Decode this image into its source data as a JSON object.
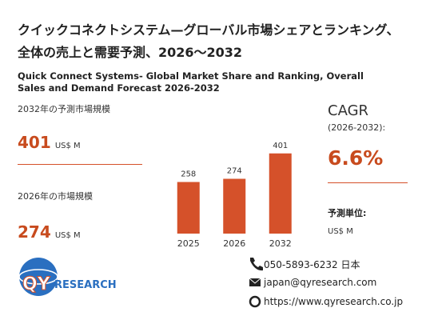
{
  "header": {
    "title_ja": "クイックコネクトシステム—グローバル市場シェアとランキング、全体の売上と需要予測、2026～2032",
    "title_en": "Quick Connect Systems- Global Market Share and Ranking, Overall Sales and Demand Forecast 2026-2032"
  },
  "stats": [
    {
      "label": "2032年の予測市場規模",
      "value": "401",
      "unit": "US$ M"
    },
    {
      "label": "2026年の市場規模",
      "value": "274",
      "unit": "US$ M"
    }
  ],
  "cagr": {
    "label": "CAGR",
    "period": "(2026-2032):",
    "value": "6.6%",
    "unit_label": "予測単位:",
    "unit": "US$ M"
  },
  "contact": {
    "phone": "050-5893-6232 日本",
    "email": "japan@qyresearch.com",
    "url": "https://www.qyresearch.co.jp"
  },
  "logo": {
    "prefix": "QY",
    "suffix": "RESEARCH"
  },
  "chart_data": {
    "type": "bar",
    "categories": [
      "2025",
      "2026",
      "2032"
    ],
    "values": [
      258,
      274,
      401
    ],
    "color": "#d5512a"
  }
}
